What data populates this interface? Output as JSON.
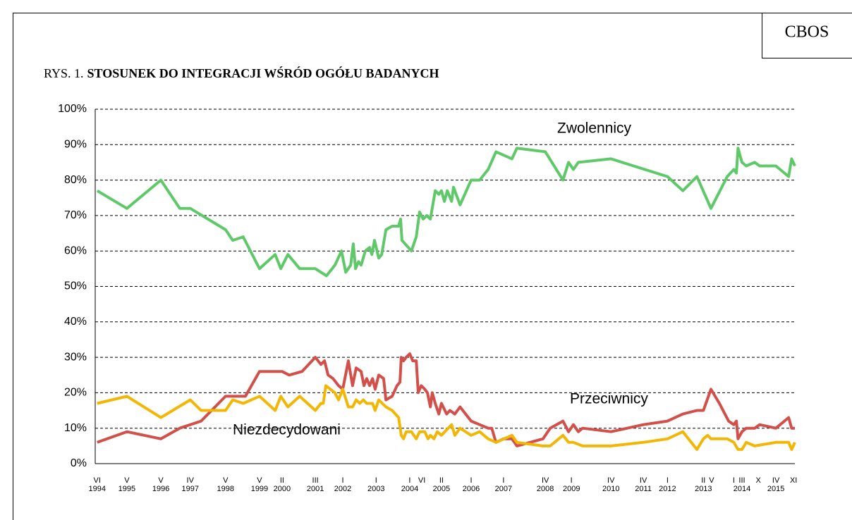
{
  "source": "CBOS",
  "chart_data": {
    "type": "line",
    "title_label": "RYS. 1.",
    "title": "STOSUNEK DO INTEGRACJI WŚRÓD OGÓŁU BADANYCH",
    "xlim": [
      1994.42,
      2015.84
    ],
    "xticks": [
      {
        "value": 1994.48,
        "label": "VI\n1994"
      },
      {
        "value": 1995.39,
        "label": "V\n1995"
      },
      {
        "value": 1996.43,
        "label": "V\n1996"
      },
      {
        "value": 1997.33,
        "label": "IV\n1997"
      },
      {
        "value": 1998.41,
        "label": "V\n1998"
      },
      {
        "value": 1999.45,
        "label": "V\n1999"
      },
      {
        "value": 2000.14,
        "label": "II\n2000"
      },
      {
        "value": 2001.16,
        "label": "III\n2001"
      },
      {
        "value": 2002.0,
        "label": "I\n2002"
      },
      {
        "value": 2003.02,
        "label": "I\n2003"
      },
      {
        "value": 2004.05,
        "label": "I\n2004"
      },
      {
        "value": 2004.42,
        "label": "VI"
      },
      {
        "value": 2005.02,
        "label": "II\n2005"
      },
      {
        "value": 2005.93,
        "label": "I\n2006"
      },
      {
        "value": 2006.92,
        "label": "I\n2007"
      },
      {
        "value": 2008.2,
        "label": "IV\n2008"
      },
      {
        "value": 2009.0,
        "label": "I\n2009"
      },
      {
        "value": 2010.21,
        "label": "IV\n2010"
      },
      {
        "value": 2011.2,
        "label": "IV\n2011"
      },
      {
        "value": 2011.94,
        "label": "I\n2012"
      },
      {
        "value": 2013.04,
        "label": "II\n2013"
      },
      {
        "value": 2013.29,
        "label": "V"
      },
      {
        "value": 2013.97,
        "label": "I"
      },
      {
        "value": 2014.22,
        "label": "III\n2014"
      },
      {
        "value": 2014.72,
        "label": "X"
      },
      {
        "value": 2015.26,
        "label": "IV\n2015"
      },
      {
        "value": 2015.8,
        "label": "XI"
      }
    ],
    "ylim": [
      0,
      100
    ],
    "yticks": [
      {
        "value": 0,
        "label": "0%"
      },
      {
        "value": 10,
        "label": "10%"
      },
      {
        "value": 20,
        "label": "20%"
      },
      {
        "value": 30,
        "label": "30%"
      },
      {
        "value": 40,
        "label": "40%"
      },
      {
        "value": 50,
        "label": "50%"
      },
      {
        "value": 60,
        "label": "60%"
      },
      {
        "value": 70,
        "label": "70%"
      },
      {
        "value": 80,
        "label": "80%"
      },
      {
        "value": 90,
        "label": "90%"
      },
      {
        "value": 100,
        "label": "100%"
      }
    ],
    "grid": true,
    "series": [
      {
        "name": "Zwolennicy",
        "color": "#5fc868",
        "x": [
          1994.48,
          1995.39,
          1996.43,
          1997.01,
          1997.33,
          1998.41,
          1998.63,
          1998.95,
          1999.45,
          1999.93,
          2000.1,
          2000.32,
          2000.68,
          2001.16,
          2001.5,
          2001.76,
          2001.96,
          2002.09,
          2002.24,
          2002.32,
          2002.39,
          2002.48,
          2002.56,
          2002.69,
          2002.82,
          2002.89,
          2002.97,
          2003.1,
          2003.19,
          2003.32,
          2003.51,
          2003.71,
          2003.77,
          2003.81,
          2004.1,
          2004.25,
          2004.35,
          2004.46,
          2004.57,
          2004.68,
          2004.83,
          2004.94,
          2005.02,
          2005.11,
          2005.2,
          2005.33,
          2005.39,
          2005.59,
          2005.93,
          2006.19,
          2006.45,
          2006.69,
          2007.18,
          2007.33,
          2008.2,
          2008.74,
          2008.91,
          2009.06,
          2009.21,
          2010.21,
          2011.94,
          2012.41,
          2012.84,
          2013.27,
          2013.77,
          2013.97,
          2014.05,
          2014.1,
          2014.22,
          2014.35,
          2014.61,
          2014.76,
          2015.26,
          2015.65,
          2015.74,
          2015.84
        ],
        "values": [
          77,
          72,
          80,
          72,
          72,
          66,
          63,
          64,
          55,
          59,
          55,
          59,
          55,
          55,
          53,
          56,
          60,
          54,
          56,
          62,
          55,
          57,
          56,
          60,
          61,
          59,
          63,
          58,
          59,
          66,
          67,
          67,
          69,
          63,
          60,
          64,
          71,
          69,
          70,
          69,
          77,
          76,
          77,
          74,
          77,
          74,
          78,
          73,
          80,
          80,
          83,
          88,
          86,
          89,
          88,
          80,
          85,
          83,
          85,
          86,
          81,
          77,
          81,
          72,
          81,
          83,
          82,
          89,
          85,
          84,
          85,
          84,
          84,
          81,
          86,
          84
        ]
      },
      {
        "name": "Przeciwnicy",
        "color": "#d24f4a",
        "x": [
          1994.48,
          1995.39,
          1996.43,
          1997.01,
          1997.66,
          1998.41,
          1999.02,
          1999.45,
          2000.14,
          2000.36,
          2000.75,
          2001.16,
          2001.33,
          2001.44,
          2001.55,
          2001.7,
          2001.87,
          2002.0,
          2002.17,
          2002.3,
          2002.41,
          2002.56,
          2002.65,
          2002.73,
          2002.82,
          2002.91,
          2002.99,
          2003.1,
          2003.25,
          2003.32,
          2003.51,
          2003.66,
          2003.75,
          2003.79,
          2003.86,
          2003.94,
          2004.05,
          2004.14,
          2004.25,
          2004.31,
          2004.4,
          2004.51,
          2004.59,
          2004.68,
          2004.74,
          2004.83,
          2004.94,
          2005.02,
          2005.18,
          2005.28,
          2005.43,
          2005.59,
          2005.93,
          2006.45,
          2006.56,
          2006.69,
          2006.92,
          2007.18,
          2007.33,
          2008.13,
          2008.35,
          2008.74,
          2008.91,
          2009.06,
          2009.21,
          2009.34,
          2010.21,
          2011.2,
          2011.94,
          2012.41,
          2012.84,
          2013.04,
          2013.27,
          2013.53,
          2013.81,
          2013.97,
          2014.05,
          2014.1,
          2014.22,
          2014.35,
          2014.61,
          2014.76,
          2015.26,
          2015.65,
          2015.74,
          2015.84
        ],
        "values": [
          6,
          9,
          7,
          10,
          12,
          19,
          19,
          26,
          26,
          25,
          26,
          30,
          28,
          29,
          25,
          24,
          22,
          21,
          29,
          22,
          27,
          26,
          22,
          24,
          22,
          24,
          21,
          25,
          24,
          18,
          19,
          22,
          23,
          30,
          29,
          30,
          31,
          29,
          29,
          20,
          22,
          21,
          20,
          16,
          20,
          17,
          14,
          17,
          14,
          15,
          14,
          16,
          12,
          10,
          10,
          6,
          7,
          7,
          5,
          7,
          10,
          12,
          9,
          11,
          9,
          10,
          9,
          11,
          12,
          14,
          15,
          15,
          21,
          17,
          12,
          11,
          12,
          7,
          9,
          10,
          10,
          11,
          10,
          13,
          10,
          10
        ]
      },
      {
        "name": "Niezdecydowani",
        "color": "#f2b705",
        "x": [
          1994.48,
          1995.39,
          1996.43,
          1997.33,
          1997.66,
          1998.41,
          1998.63,
          1998.95,
          1999.45,
          1999.93,
          2000.1,
          2000.32,
          2000.68,
          2001.16,
          2001.33,
          2001.4,
          2001.48,
          2001.76,
          2001.87,
          2002.0,
          2002.17,
          2002.3,
          2002.41,
          2002.52,
          2002.63,
          2002.73,
          2002.91,
          2002.99,
          2003.1,
          2003.32,
          2003.51,
          2003.71,
          2003.79,
          2003.86,
          2003.94,
          2004.1,
          2004.25,
          2004.35,
          2004.51,
          2004.61,
          2004.68,
          2004.79,
          2004.89,
          2005.02,
          2005.33,
          2005.43,
          2005.59,
          2005.93,
          2006.19,
          2006.45,
          2006.69,
          2007.18,
          2007.33,
          2008.13,
          2008.35,
          2008.74,
          2008.91,
          2009.06,
          2009.34,
          2010.21,
          2011.2,
          2011.94,
          2012.41,
          2012.84,
          2013.04,
          2013.17,
          2013.27,
          2013.77,
          2013.97,
          2014.1,
          2014.22,
          2014.35,
          2014.61,
          2015.26,
          2015.65,
          2015.74,
          2015.84
        ],
        "values": [
          17,
          19,
          13,
          18,
          15,
          15,
          18,
          17,
          19,
          15,
          19,
          16,
          19,
          15,
          17,
          17,
          22,
          20,
          18,
          21,
          16,
          16,
          18,
          17,
          18,
          17,
          17,
          15,
          18,
          16,
          15,
          13,
          8,
          7,
          9,
          9,
          7,
          9,
          9,
          7,
          8,
          7,
          9,
          8,
          11,
          8,
          10,
          8,
          9,
          7,
          6,
          8,
          6,
          5,
          5,
          8,
          6,
          6,
          5,
          5,
          6,
          7,
          9,
          4,
          7,
          8,
          7,
          7,
          6,
          4,
          4,
          6,
          5,
          6,
          6,
          4,
          6
        ]
      }
    ]
  }
}
